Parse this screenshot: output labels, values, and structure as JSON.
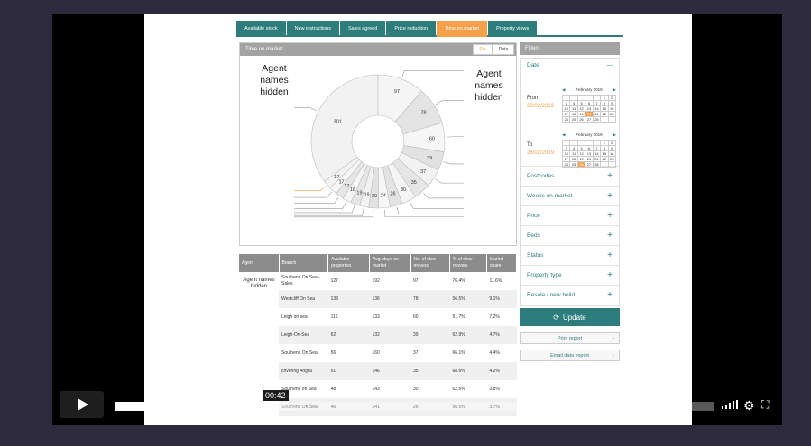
{
  "tabs": [
    {
      "label": "Available stock"
    },
    {
      "label": "New instructions"
    },
    {
      "label": "Sales agreed"
    },
    {
      "label": "Price reduction"
    },
    {
      "label": "Time on market",
      "active": true
    },
    {
      "label": "Property views"
    }
  ],
  "chart_panel": {
    "title": "Time on market",
    "pie_label": "Pie",
    "data_label": "Data",
    "note_left": "Agent names hidden",
    "note_right": "Agent names hidden"
  },
  "chart_data": {
    "type": "pie",
    "style": "donut",
    "values": [
      301,
      97,
      78,
      60,
      39,
      37,
      35,
      30,
      26,
      24,
      20,
      19,
      19,
      18,
      17,
      17,
      17
    ],
    "colors": [
      "#f2f2f2",
      "#f5f5f5",
      "#e4e4e4",
      "#f6f6f6",
      "#e2e2e2",
      "#f3f3f3",
      "#e6e6e6",
      "#f5f5f5",
      "#e3e3e3",
      "#f6f6f6",
      "#e2e2e2",
      "#f2f2f2",
      "#e6e6e6",
      "#f4f4f4",
      "#e6e6e6",
      "#f5f5f5",
      "#f3f3f3"
    ],
    "highlight_color": "#f5a04a"
  },
  "table": {
    "columns": [
      "Agent",
      "Branch",
      "Available properties",
      "Avg. days on market",
      "No. of slow movers",
      "% of slow movers",
      "Market share"
    ],
    "agent_note": "Agent names hidden",
    "rows": [
      [
        "Southend On Sea - Sales",
        "127",
        "192",
        "97",
        "76.4%",
        "11.6%"
      ],
      [
        "Westcliff On Sea",
        "138",
        "136",
        "78",
        "56.5%",
        "9.1%"
      ],
      [
        "Leigh on sea",
        "116",
        "133",
        "60",
        "51.7%",
        "7.2%"
      ],
      [
        "Leigh-On-Sea",
        "62",
        "132",
        "39",
        "62.9%",
        "4.7%"
      ],
      [
        "Southend On Sea",
        "56",
        "160",
        "37",
        "66.1%",
        "4.4%"
      ],
      [
        "covering Angila",
        "51",
        "146",
        "35",
        "68.6%",
        "4.2%"
      ],
      [
        "Southend on Sea",
        "48",
        "143",
        "30",
        "62.5%",
        "3.8%"
      ],
      [
        "Southend On Sea",
        "46",
        "141",
        "26",
        "56.5%",
        "3.7%"
      ]
    ]
  },
  "filters": {
    "title": "Filters",
    "date_label": "Date",
    "from_label": "From",
    "from_value": "20/02/2019",
    "to_label": "To",
    "to_value": "26/02/2019",
    "month": "February 2019",
    "cal_from": [
      "",
      "",
      "",
      "",
      "",
      "1",
      "2",
      "3",
      "4",
      "5",
      "6",
      "7",
      "8",
      "9",
      "10",
      "11",
      "12",
      "13",
      "14",
      "15",
      "16",
      "17",
      "18",
      "19",
      "20",
      "21",
      "22",
      "23",
      "24",
      "25",
      "26",
      "27",
      "28",
      "",
      ""
    ],
    "cal_from_selected": "20",
    "cal_to": [
      "",
      "",
      "",
      "",
      "",
      "1",
      "2",
      "3",
      "4",
      "5",
      "6",
      "7",
      "8",
      "9",
      "10",
      "11",
      "12",
      "13",
      "14",
      "15",
      "16",
      "17",
      "18",
      "19",
      "20",
      "21",
      "22",
      "23",
      "24",
      "25",
      "26",
      "27",
      "28",
      "",
      ""
    ],
    "cal_to_selected": "26",
    "items": [
      {
        "label": "Postcodes"
      },
      {
        "label": "Weeks on market"
      },
      {
        "label": "Price"
      },
      {
        "label": "Beds"
      },
      {
        "label": "Status"
      },
      {
        "label": "Property type"
      },
      {
        "label": "Resale / new build"
      }
    ],
    "update_label": "Update",
    "print_label": "Print report",
    "email_label": "Email data export"
  },
  "player": {
    "time": "00:42",
    "progress": 0.26
  }
}
